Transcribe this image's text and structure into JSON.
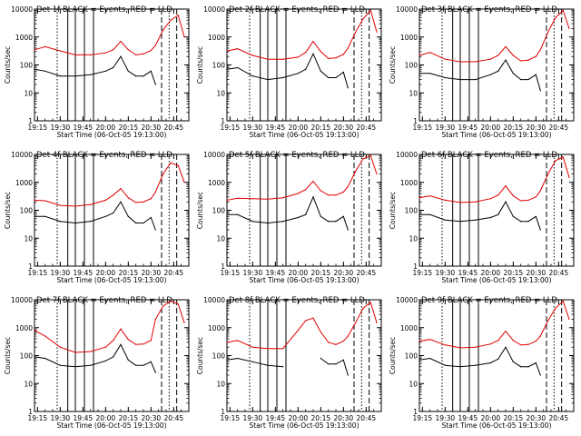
{
  "colors": {
    "events": "#000000",
    "lld": "#e00000",
    "axes": "#000000",
    "background": "#ffffff"
  },
  "common": {
    "ylabel": "Counts/sec",
    "xlabel": "Start Time (06-Oct-05 19:13:00)",
    "xticks": [
      "19:15",
      "19:30",
      "19:45",
      "20:00",
      "20:15",
      "20:30",
      "20:45"
    ],
    "yticks": [
      "1",
      "10",
      "100",
      "1000",
      "10000"
    ]
  },
  "chart_data": [
    {
      "type": "line",
      "title": "Det 1f BLACK = Events, RED = LLD",
      "xlabel": "Start Time (06-Oct-05 19:13:00)",
      "ylabel": "Counts/sec",
      "xlim": [
        "19:13",
        "20:55"
      ],
      "ylim": [
        1,
        10000
      ],
      "yscale": "log",
      "x": [
        "19:13",
        "19:20",
        "19:30",
        "19:40",
        "19:50",
        "20:00",
        "20:05",
        "20:10",
        "20:15",
        "20:20",
        "20:25",
        "20:30",
        "20:33",
        "20:38",
        "20:43",
        "20:48",
        "20:52"
      ],
      "series": [
        {
          "name": "LLD",
          "values": [
            350,
            450,
            320,
            230,
            230,
            270,
            350,
            700,
            350,
            230,
            250,
            330,
            500,
            1800,
            4000,
            6000,
            1000
          ]
        },
        {
          "name": "Events",
          "values": [
            70,
            60,
            40,
            40,
            45,
            60,
            80,
            200,
            60,
            40,
            40,
            60,
            20,
            null,
            null,
            null,
            null
          ]
        }
      ]
    },
    {
      "type": "line",
      "title": "Det 2f BLACK = Events, RED = LLD",
      "xlabel": "Start Time (06-Oct-05 19:13:00)",
      "ylabel": "Counts/sec",
      "xlim": [
        "19:13",
        "20:55"
      ],
      "ylim": [
        1,
        10000
      ],
      "yscale": "log",
      "x": [
        "19:13",
        "19:20",
        "19:30",
        "19:40",
        "19:50",
        "20:00",
        "20:05",
        "20:10",
        "20:15",
        "20:20",
        "20:25",
        "20:30",
        "20:33",
        "20:38",
        "20:43",
        "20:48",
        "20:52"
      ],
      "series": [
        {
          "name": "LLD",
          "values": [
            320,
            380,
            220,
            160,
            160,
            190,
            280,
            700,
            300,
            170,
            180,
            240,
            400,
            1500,
            4500,
            9000,
            1500
          ]
        },
        {
          "name": "Events",
          "values": [
            70,
            80,
            40,
            30,
            35,
            50,
            70,
            250,
            60,
            35,
            35,
            55,
            15,
            null,
            null,
            null,
            null
          ]
        }
      ]
    },
    {
      "type": "line",
      "title": "Det 3f BLACK = Events, RED = LLD",
      "xlabel": "Start Time (06-Oct-05 19:13:00)",
      "ylabel": "Counts/sec",
      "xlim": [
        "19:13",
        "20:55"
      ],
      "ylim": [
        1,
        10000
      ],
      "yscale": "log",
      "x": [
        "19:13",
        "19:20",
        "19:30",
        "19:40",
        "19:50",
        "20:00",
        "20:05",
        "20:10",
        "20:15",
        "20:20",
        "20:25",
        "20:30",
        "20:33",
        "20:38",
        "20:43",
        "20:48",
        "20:52"
      ],
      "series": [
        {
          "name": "LLD",
          "values": [
            220,
            280,
            160,
            130,
            130,
            160,
            220,
            450,
            220,
            140,
            150,
            200,
            350,
            1500,
            5000,
            9000,
            2000
          ]
        },
        {
          "name": "Events",
          "values": [
            50,
            50,
            35,
            30,
            30,
            45,
            60,
            150,
            50,
            30,
            30,
            45,
            12,
            null,
            null,
            null,
            null
          ]
        }
      ]
    },
    {
      "type": "line",
      "title": "Det 4f BLACK = Events, RED = LLD",
      "xlabel": "Start Time (06-Oct-05 19:13:00)",
      "ylabel": "Counts/sec",
      "xlim": [
        "19:13",
        "20:55"
      ],
      "ylim": [
        1,
        10000
      ],
      "yscale": "log",
      "x": [
        "19:13",
        "19:20",
        "19:30",
        "19:40",
        "19:50",
        "20:00",
        "20:05",
        "20:10",
        "20:15",
        "20:20",
        "20:25",
        "20:30",
        "20:33",
        "20:38",
        "20:43",
        "20:48",
        "20:52"
      ],
      "series": [
        {
          "name": "LLD",
          "values": [
            230,
            220,
            150,
            140,
            160,
            230,
            350,
            600,
            280,
            190,
            200,
            260,
            450,
            2000,
            5000,
            4000,
            1000
          ]
        },
        {
          "name": "Events",
          "values": [
            60,
            60,
            40,
            35,
            40,
            60,
            80,
            200,
            60,
            35,
            35,
            55,
            20,
            null,
            null,
            null,
            null
          ]
        }
      ]
    },
    {
      "type": "line",
      "title": "Det 5f BLACK = Events, RED = LLD",
      "xlabel": "Start Time (06-Oct-05 19:13:00)",
      "ylabel": "Counts/sec",
      "xlim": [
        "19:13",
        "20:55"
      ],
      "ylim": [
        1,
        10000
      ],
      "yscale": "log",
      "x": [
        "19:13",
        "19:20",
        "19:30",
        "19:40",
        "19:50",
        "20:00",
        "20:05",
        "20:10",
        "20:15",
        "20:20",
        "20:25",
        "20:30",
        "20:33",
        "20:38",
        "20:43",
        "20:48",
        "20:52"
      ],
      "series": [
        {
          "name": "LLD",
          "values": [
            230,
            270,
            260,
            250,
            280,
            400,
            550,
            1100,
            500,
            350,
            350,
            450,
            700,
            2500,
            7000,
            9000,
            2000
          ]
        },
        {
          "name": "Events",
          "values": [
            70,
            70,
            40,
            35,
            40,
            55,
            70,
            300,
            60,
            40,
            40,
            60,
            20,
            null,
            null,
            null,
            null
          ]
        }
      ]
    },
    {
      "type": "line",
      "title": "Det 6f BLACK = Events, RED = LLD",
      "xlabel": "Start Time (06-Oct-05 19:13:00)",
      "ylabel": "Counts/sec",
      "xlim": [
        "19:13",
        "20:55"
      ],
      "ylim": [
        1,
        10000
      ],
      "yscale": "log",
      "x": [
        "19:13",
        "19:20",
        "19:30",
        "19:40",
        "19:50",
        "20:00",
        "20:05",
        "20:10",
        "20:15",
        "20:20",
        "20:25",
        "20:30",
        "20:33",
        "20:38",
        "20:43",
        "20:48",
        "20:52"
      ],
      "series": [
        {
          "name": "LLD",
          "values": [
            280,
            330,
            230,
            190,
            200,
            260,
            350,
            750,
            330,
            220,
            230,
            300,
            500,
            2000,
            6000,
            8000,
            1500
          ]
        },
        {
          "name": "Events",
          "values": [
            70,
            70,
            45,
            40,
            45,
            55,
            70,
            200,
            60,
            40,
            40,
            60,
            20,
            null,
            null,
            null,
            null
          ]
        }
      ]
    },
    {
      "type": "line",
      "title": "Det 7f BLACK = Events, RED = LLD",
      "xlabel": "Start Time (06-Oct-05 19:13:00)",
      "ylabel": "Counts/sec",
      "xlim": [
        "19:13",
        "20:55"
      ],
      "ylim": [
        1,
        10000
      ],
      "yscale": "log",
      "x": [
        "19:13",
        "19:20",
        "19:30",
        "19:40",
        "19:50",
        "20:00",
        "20:05",
        "20:10",
        "20:15",
        "20:20",
        "20:25",
        "20:30",
        "20:33",
        "20:38",
        "20:43",
        "20:48",
        "20:52"
      ],
      "series": [
        {
          "name": "LLD",
          "values": [
            800,
            500,
            200,
            130,
            140,
            200,
            350,
            900,
            380,
            250,
            260,
            350,
            2000,
            6000,
            9000,
            7000,
            1500
          ]
        },
        {
          "name": "Events",
          "values": [
            90,
            80,
            45,
            40,
            45,
            65,
            90,
            250,
            70,
            45,
            45,
            60,
            25,
            null,
            null,
            null,
            null
          ]
        }
      ]
    },
    {
      "type": "line",
      "title": "Det 8f BLACK = Events, RED = LLD",
      "xlabel": "Start Time (06-Oct-05 19:13:00)",
      "ylabel": "Counts/sec",
      "xlim": [
        "19:13",
        "20:55"
      ],
      "ylim": [
        1,
        10000
      ],
      "yscale": "log",
      "x": [
        "19:13",
        "19:20",
        "19:30",
        "19:40",
        "19:50",
        "20:00",
        "20:05",
        "20:10",
        "20:15",
        "20:20",
        "20:25",
        "20:30",
        "20:33",
        "20:38",
        "20:43",
        "20:48",
        "20:52"
      ],
      "series": [
        {
          "name": "LLD",
          "values": [
            300,
            350,
            200,
            180,
            180,
            800,
            1800,
            2200,
            700,
            300,
            250,
            330,
            500,
            1500,
            5000,
            8000,
            1500
          ]
        },
        {
          "name": "Events",
          "values": [
            70,
            80,
            60,
            45,
            40,
            null,
            null,
            null,
            80,
            50,
            50,
            70,
            20,
            null,
            null,
            null,
            null
          ]
        }
      ]
    },
    {
      "type": "line",
      "title": "Det 9f BLACK = Events, RED = LLD",
      "xlabel": "Start Time (06-Oct-05 19:13:00)",
      "ylabel": "Counts/sec",
      "xlim": [
        "19:13",
        "20:55"
      ],
      "ylim": [
        1,
        10000
      ],
      "yscale": "log",
      "x": [
        "19:13",
        "19:20",
        "19:30",
        "19:40",
        "19:50",
        "20:00",
        "20:05",
        "20:10",
        "20:15",
        "20:20",
        "20:25",
        "20:30",
        "20:33",
        "20:38",
        "20:43",
        "20:48",
        "20:52"
      ],
      "series": [
        {
          "name": "LLD",
          "values": [
            330,
            380,
            240,
            190,
            200,
            260,
            350,
            750,
            350,
            240,
            250,
            330,
            500,
            1800,
            5000,
            9000,
            2000
          ]
        },
        {
          "name": "Events",
          "values": [
            70,
            80,
            45,
            40,
            45,
            55,
            75,
            200,
            60,
            40,
            40,
            55,
            20,
            null,
            null,
            null,
            null
          ]
        }
      ]
    }
  ]
}
